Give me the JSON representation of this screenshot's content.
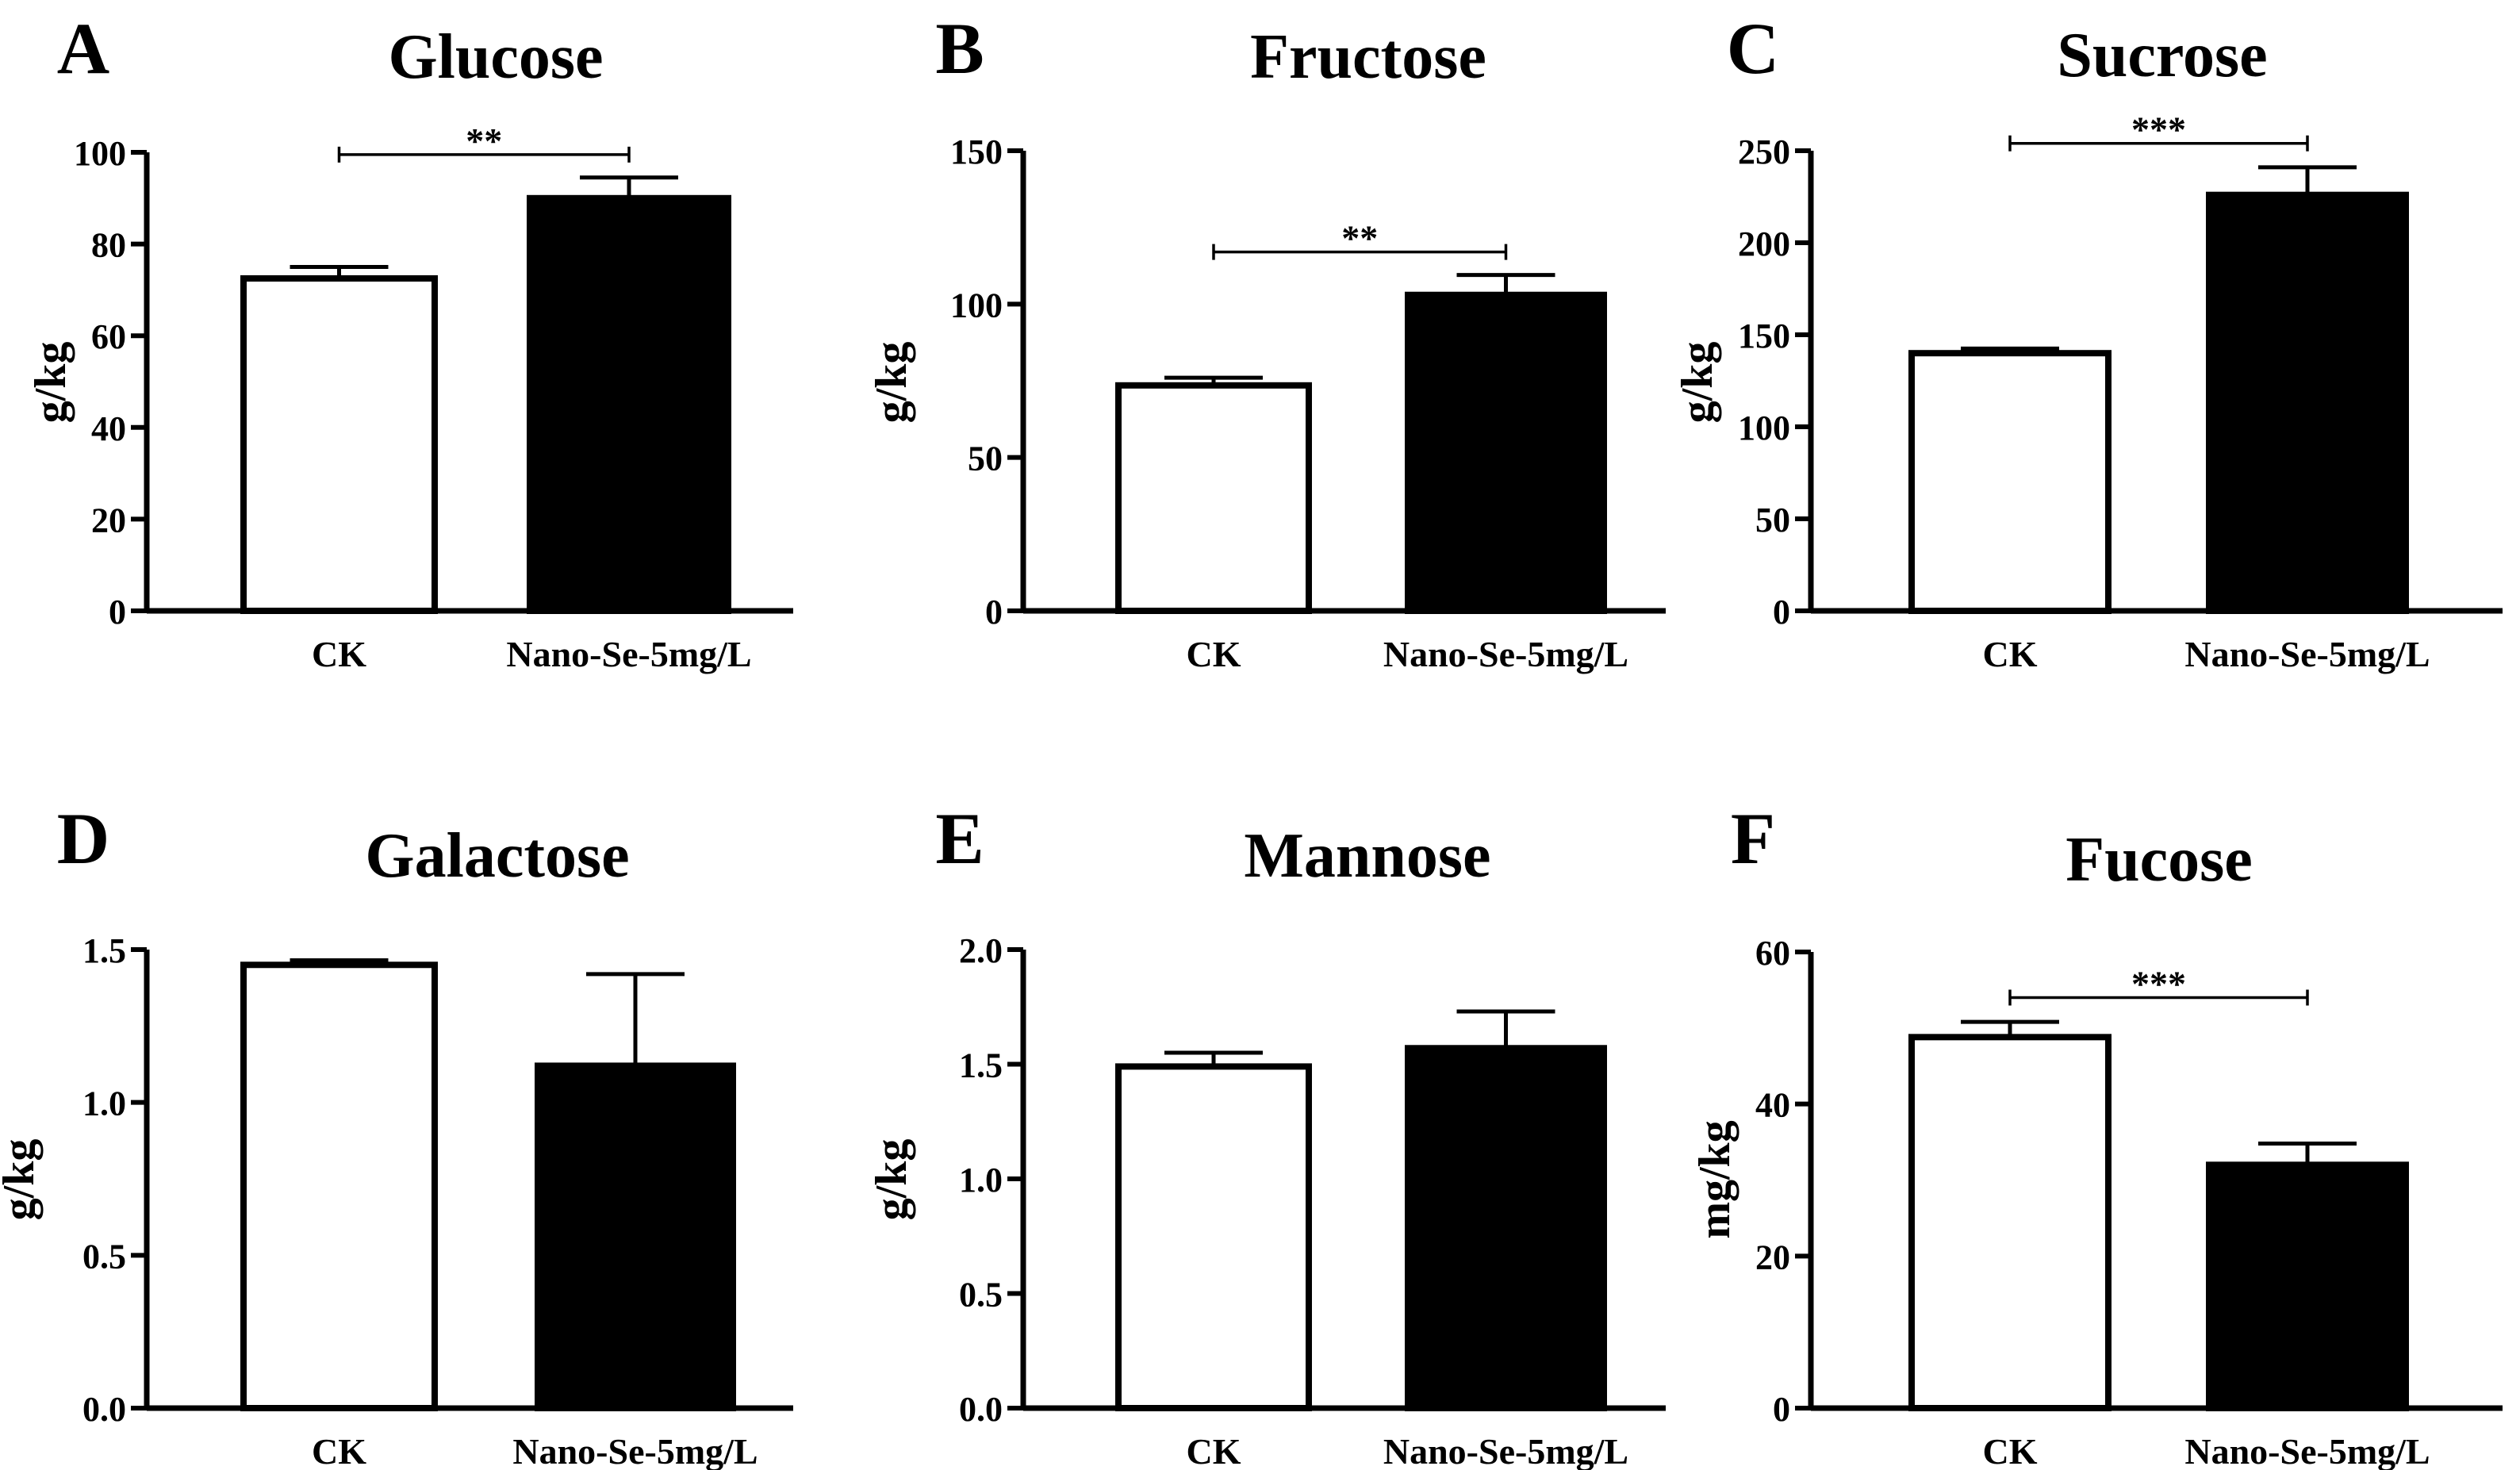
{
  "chart_data": [
    {
      "panel_letter": "A",
      "type": "bar",
      "title": "Glucose",
      "xlabel": "",
      "ylabel": "g/kg",
      "categories": [
        "CK",
        "Nano-Se-5mg/L"
      ],
      "values": [
        72.5,
        90.0
      ],
      "errors": [
        2.5,
        4.5
      ],
      "ylim": [
        0,
        100
      ],
      "yticks": [
        0,
        20,
        40,
        60,
        80,
        100
      ],
      "ytick_labels": [
        "0",
        "20",
        "40",
        "60",
        "80",
        "100"
      ],
      "bar_colors": [
        "#ffffff",
        "#000000"
      ],
      "significance": {
        "label": "**",
        "y": 99.5
      }
    },
    {
      "panel_letter": "B",
      "type": "bar",
      "title": "Fructose",
      "xlabel": "",
      "ylabel": "g/kg",
      "categories": [
        "CK",
        "Nano-Se-5mg/L"
      ],
      "values": [
        73.5,
        103.0
      ],
      "errors": [
        2.5,
        6.5
      ],
      "ylim": [
        0,
        150
      ],
      "yticks": [
        0,
        50,
        100,
        150
      ],
      "ytick_labels": [
        "0",
        "50",
        "100",
        "150"
      ],
      "bar_colors": [
        "#ffffff",
        "#000000"
      ],
      "significance": {
        "label": "**",
        "y": 117
      }
    },
    {
      "panel_letter": "C",
      "type": "bar",
      "title": "Sucrose",
      "xlabel": "",
      "ylabel": "g/kg",
      "categories": [
        "CK",
        "Nano-Se-5mg/L"
      ],
      "values": [
        140,
        226
      ],
      "errors": [
        2.5,
        15
      ],
      "ylim": [
        0,
        250
      ],
      "yticks": [
        0,
        50,
        100,
        150,
        200,
        250
      ],
      "ytick_labels": [
        "0",
        "50",
        "100",
        "150",
        "200",
        "250"
      ],
      "bar_colors": [
        "#ffffff",
        "#000000"
      ],
      "significance": {
        "label": "***",
        "y": 254
      }
    },
    {
      "panel_letter": "D",
      "type": "bar",
      "title": "Galactose",
      "xlabel": "",
      "ylabel": "g/kg",
      "categories": [
        "CK",
        "Nano-Se-5mg/L"
      ],
      "values": [
        1.45,
        1.12
      ],
      "errors": [
        0.015,
        0.3
      ],
      "ylim": [
        0,
        1.5
      ],
      "yticks": [
        0,
        0.5,
        1.0,
        1.5
      ],
      "ytick_labels": [
        "0.0",
        "0.5",
        "1.0",
        "1.5"
      ],
      "bar_colors": [
        "#ffffff",
        "#000000"
      ]
    },
    {
      "panel_letter": "E",
      "type": "bar",
      "title": "Mannose",
      "xlabel": "",
      "ylabel": "g/kg",
      "categories": [
        "CK",
        "Nano-Se-5mg/L"
      ],
      "values": [
        1.49,
        1.57
      ],
      "errors": [
        0.06,
        0.16
      ],
      "ylim": [
        0,
        2.0
      ],
      "yticks": [
        0,
        0.5,
        1.0,
        1.5,
        2.0
      ],
      "ytick_labels": [
        "0.0",
        "0.5",
        "1.0",
        "1.5",
        "2.0"
      ],
      "bar_colors": [
        "#ffffff",
        "#000000"
      ]
    },
    {
      "panel_letter": "F",
      "type": "bar",
      "title": "Fucose",
      "xlabel": "",
      "ylabel": "mg/kg",
      "categories": [
        "CK",
        "Nano-Se-5mg/L"
      ],
      "values": [
        48.8,
        32.0
      ],
      "errors": [
        2.0,
        2.8
      ],
      "ylim": [
        0,
        60
      ],
      "yticks": [
        0,
        20,
        40,
        60
      ],
      "ytick_labels": [
        "0",
        "20",
        "40",
        "60"
      ],
      "bar_colors": [
        "#ffffff",
        "#000000"
      ],
      "significance": {
        "label": "***",
        "y": 54
      }
    }
  ]
}
